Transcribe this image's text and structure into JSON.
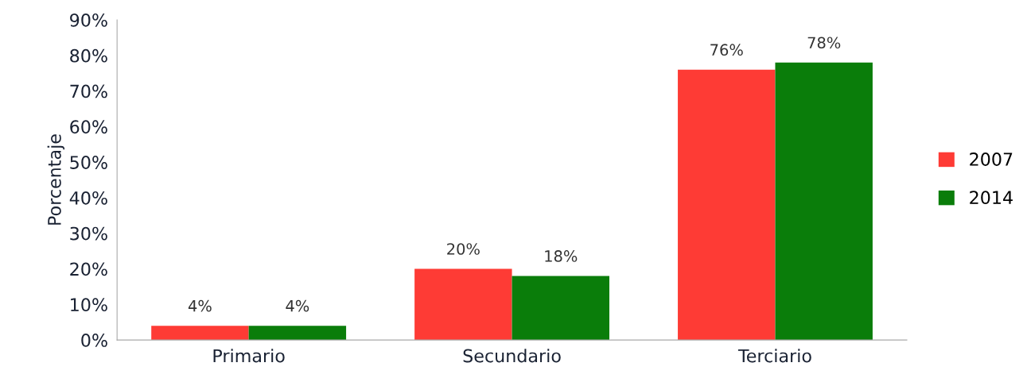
{
  "chart_data": {
    "type": "bar",
    "ylabel": "Porcentaje",
    "categories": [
      "Primario",
      "Secundario",
      "Terciario"
    ],
    "series": [
      {
        "name": "2007",
        "color": "#fe3b35",
        "values": [
          4,
          20,
          76
        ],
        "value_labels": [
          "4%",
          "20%",
          "76%"
        ]
      },
      {
        "name": "2014",
        "color": "#0a7d0a",
        "values": [
          4,
          18,
          78
        ],
        "value_labels": [
          "4%",
          "18%",
          "78%"
        ]
      }
    ],
    "ylim": [
      0,
      90
    ],
    "yticks": [
      {
        "value": 0,
        "label": "0%"
      },
      {
        "value": 10,
        "label": "10%"
      },
      {
        "value": 20,
        "label": "20%"
      },
      {
        "value": 30,
        "label": "30%"
      },
      {
        "value": 40,
        "label": "40%"
      },
      {
        "value": 50,
        "label": "50%"
      },
      {
        "value": 60,
        "label": "60%"
      },
      {
        "value": 70,
        "label": "70%"
      },
      {
        "value": 80,
        "label": "80%"
      },
      {
        "value": 90,
        "label": "90%"
      }
    ],
    "grid": false,
    "legend": "right"
  }
}
